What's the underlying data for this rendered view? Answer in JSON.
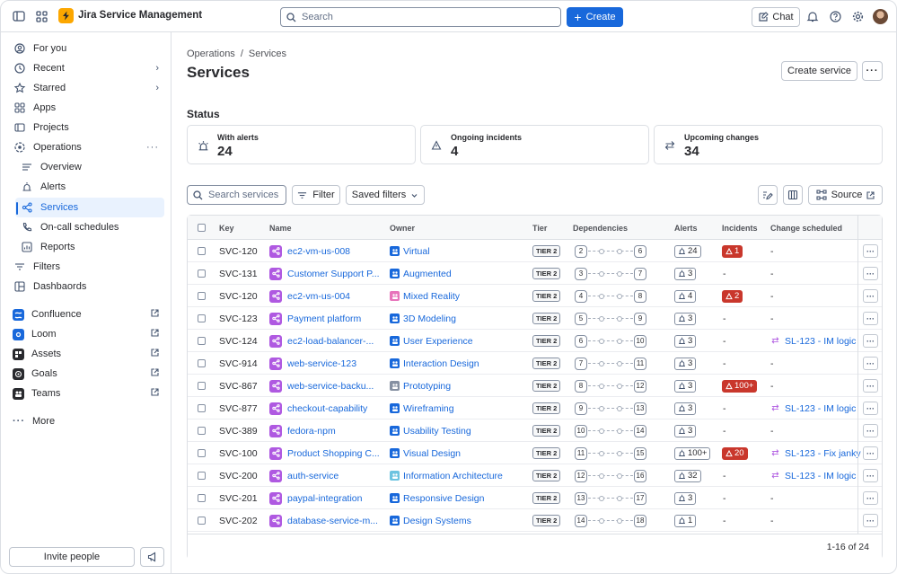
{
  "app": {
    "title": "Jira Service Management"
  },
  "topbar": {
    "search_placeholder": "Search",
    "create_label": "Create",
    "chat_label": "Chat"
  },
  "sidebar": {
    "items": [
      {
        "label": "For you"
      },
      {
        "label": "Recent"
      },
      {
        "label": "Starred"
      },
      {
        "label": "Apps"
      },
      {
        "label": "Projects"
      },
      {
        "label": "Operations"
      },
      {
        "label": "Overview"
      },
      {
        "label": "Alerts"
      },
      {
        "label": "Services"
      },
      {
        "label": "On-call schedules"
      },
      {
        "label": "Reports"
      },
      {
        "label": "Filters"
      },
      {
        "label": "Dashbaords"
      }
    ],
    "apps": [
      {
        "label": "Confluence",
        "color": "#1868db"
      },
      {
        "label": "Loom",
        "color": "#1868db"
      },
      {
        "label": "Assets",
        "color": "#292a2e"
      },
      {
        "label": "Goals",
        "color": "#292a2e"
      },
      {
        "label": "Teams",
        "color": "#292a2e"
      }
    ],
    "more_label": "More",
    "invite_label": "Invite people"
  },
  "breadcrumb": {
    "parent": "Operations",
    "separator": "/",
    "current": "Services"
  },
  "page": {
    "title": "Services",
    "create_service_label": "Create service"
  },
  "status": {
    "heading": "Status",
    "cards": [
      {
        "label": "With alerts",
        "value": "24"
      },
      {
        "label": "Ongoing incidents",
        "value": "4"
      },
      {
        "label": "Upcoming changes",
        "value": "34"
      }
    ]
  },
  "toolbar": {
    "search_placeholder": "Search services",
    "filter_label": "Filter",
    "saved_filters_label": "Saved filters",
    "source_label": "Source"
  },
  "table": {
    "headers": [
      "Key",
      "Name",
      "Owner",
      "Tier",
      "Dependencies",
      "Alerts",
      "Incidents",
      "Change scheduled"
    ],
    "rows": [
      {
        "key": "SVC-120",
        "name": "ec2-vm-us-008",
        "owner": "Virtual",
        "owner_color": "#1868db",
        "tier": "TIER 2",
        "dep_in": "2",
        "dep_out": "6",
        "alerts": "24",
        "incidents": "1",
        "change": "-"
      },
      {
        "key": "SVC-131",
        "name": "Customer Support P...",
        "owner": "Augmented",
        "owner_color": "#1868db",
        "tier": "TIER 2",
        "dep_in": "3",
        "dep_out": "7",
        "alerts": "3",
        "incidents": "-",
        "change": "-"
      },
      {
        "key": "SVC-120",
        "name": "ec2-vm-us-004",
        "owner": "Mixed Reality",
        "owner_color": "#e774bb",
        "tier": "TIER 2",
        "dep_in": "4",
        "dep_out": "8",
        "alerts": "4",
        "incidents": "2",
        "change": "-"
      },
      {
        "key": "SVC-123",
        "name": "Payment platform",
        "owner": "3D Modeling",
        "owner_color": "#1868db",
        "tier": "TIER 2",
        "dep_in": "5",
        "dep_out": "9",
        "alerts": "3",
        "incidents": "-",
        "change": "-"
      },
      {
        "key": "SVC-124",
        "name": "ec2-load-balancer-...",
        "owner": "User Experience",
        "owner_color": "#1868db",
        "tier": "TIER 2",
        "dep_in": "6",
        "dep_out": "10",
        "alerts": "3",
        "incidents": "-",
        "change": "SL-123 - IM logic"
      },
      {
        "key": "SVC-914",
        "name": "web-service-123",
        "owner": "Interaction Design",
        "owner_color": "#1868db",
        "tier": "TIER 2",
        "dep_in": "7",
        "dep_out": "11",
        "alerts": "3",
        "incidents": "-",
        "change": "-"
      },
      {
        "key": "SVC-867",
        "name": "web-service-backu...",
        "owner": "Prototyping",
        "owner_color": "#8590a2",
        "tier": "TIER 2",
        "dep_in": "8",
        "dep_out": "12",
        "alerts": "3",
        "incidents": "100+",
        "change": "-"
      },
      {
        "key": "SVC-877",
        "name": "checkout-capability",
        "owner": "Wireframing",
        "owner_color": "#1868db",
        "tier": "TIER 2",
        "dep_in": "9",
        "dep_out": "13",
        "alerts": "3",
        "incidents": "-",
        "change": "SL-123 - IM logic"
      },
      {
        "key": "SVC-389",
        "name": "fedora-npm",
        "owner": "Usability Testing",
        "owner_color": "#1868db",
        "tier": "TIER 2",
        "dep_in": "10",
        "dep_out": "14",
        "alerts": "3",
        "incidents": "-",
        "change": "-"
      },
      {
        "key": "SVC-100",
        "name": "Product Shopping C...",
        "owner": "Visual Design",
        "owner_color": "#1868db",
        "tier": "TIER 2",
        "dep_in": "11",
        "dep_out": "15",
        "alerts": "100+",
        "incidents": "20",
        "change": "SL-123 - Fix janky"
      },
      {
        "key": "SVC-200",
        "name": "auth-service",
        "owner": "Information Architecture",
        "owner_color": "#6cc3e0",
        "tier": "TIER 2",
        "dep_in": "12",
        "dep_out": "16",
        "alerts": "32",
        "incidents": "-",
        "change": "SL-123 - IM logic"
      },
      {
        "key": "SVC-201",
        "name": "paypal-integration",
        "owner": "Responsive Design",
        "owner_color": "#1868db",
        "tier": "TIER 2",
        "dep_in": "13",
        "dep_out": "17",
        "alerts": "3",
        "incidents": "-",
        "change": "-"
      },
      {
        "key": "SVC-202",
        "name": "database-service-m...",
        "owner": "Design Systems",
        "owner_color": "#1868db",
        "tier": "TIER 2",
        "dep_in": "14",
        "dep_out": "18",
        "alerts": "1",
        "incidents": "-",
        "change": "-"
      }
    ],
    "pagination": "1-16 of 24"
  },
  "colors": {
    "accent": "#1868db",
    "danger": "#c9372c",
    "service": "#af59e1",
    "brand": "#fca700"
  }
}
